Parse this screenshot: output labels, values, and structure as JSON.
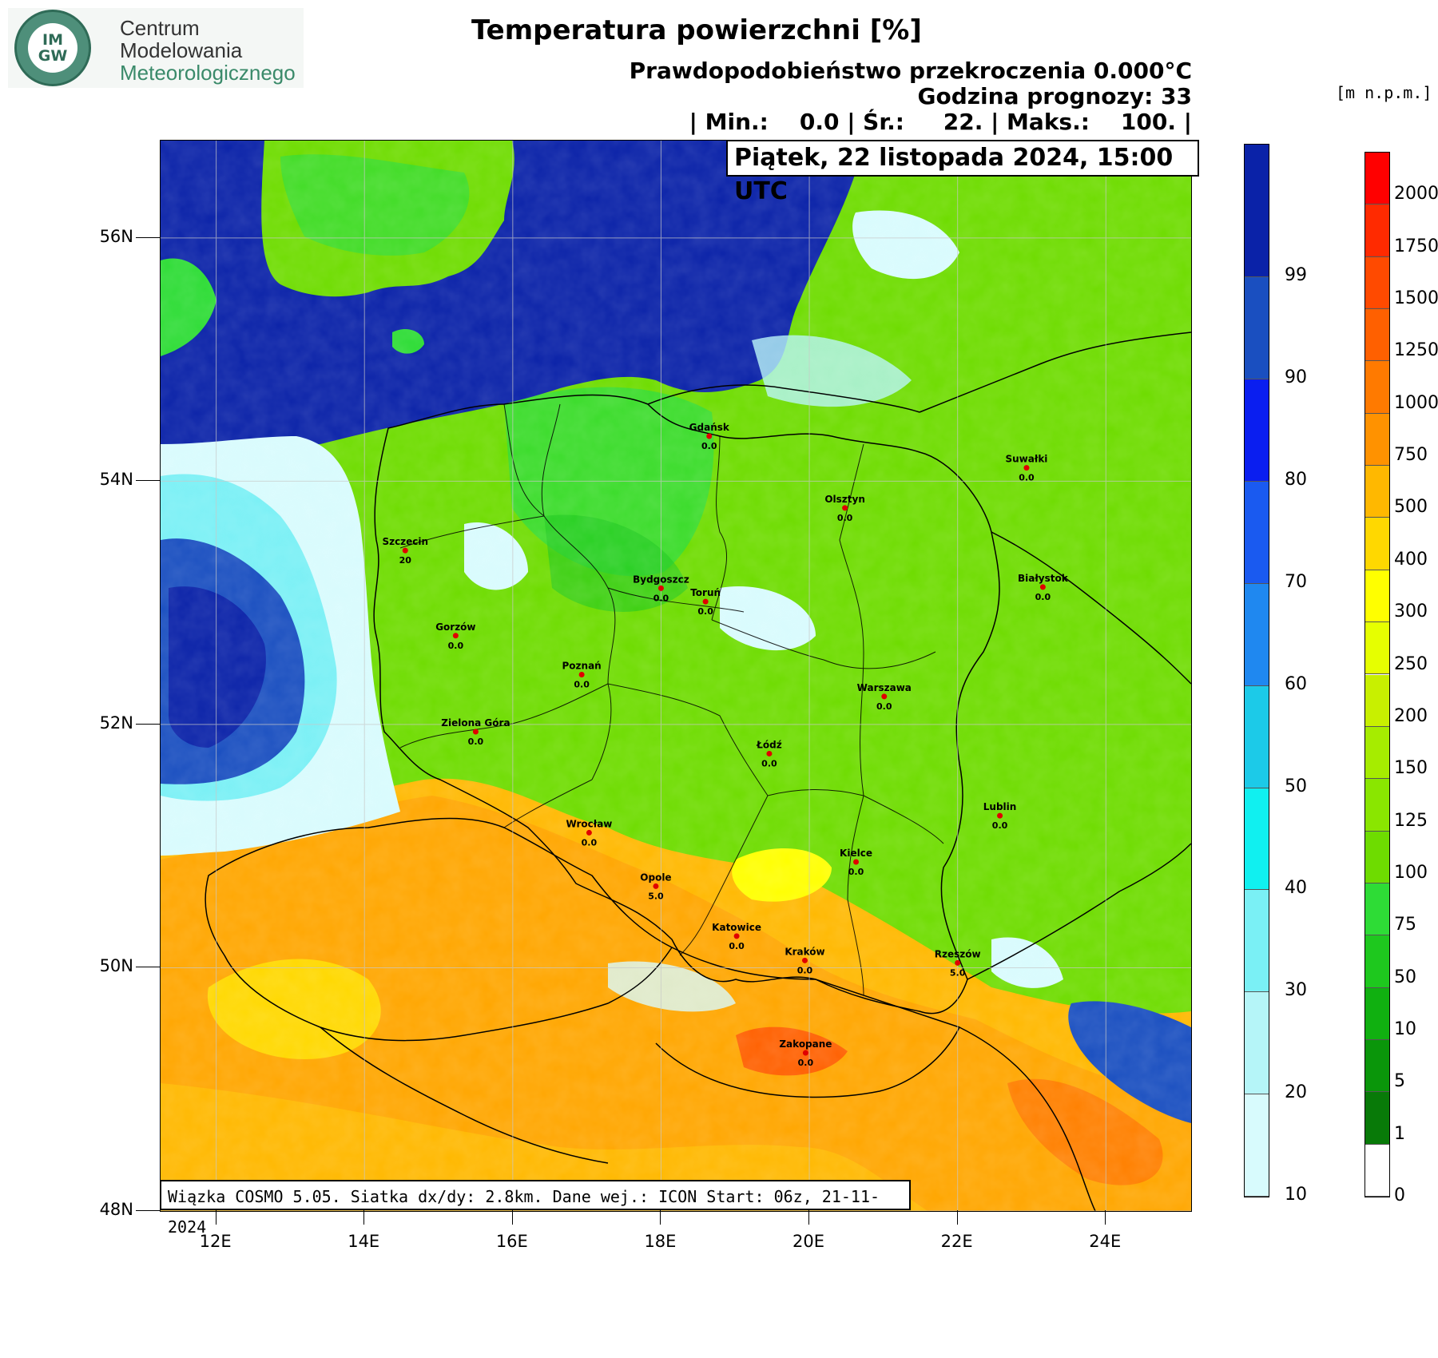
{
  "logo": {
    "badge_line_1": "IM",
    "badge_line_2": "GW",
    "line_1": "Centrum",
    "line_2": "Modelowania",
    "line_3": "Meteorologicznego"
  },
  "header": {
    "title": "Temperatura powierzchni [%]",
    "probability_line_prefix": "Prawdopodobieństwo przekroczenia 0.000",
    "probability_unit": "°C",
    "forecast_hour_line": "Godzina prognozy: 33",
    "stats_line": "| Min.:    0.0 | Śr.:     22. | Maks.:    100. |",
    "date_line": "Piątek, 22 listopada 2024, 15:00 UTC"
  },
  "footnote": "Wiązka COSMO 5.05. Siatka dx/dy: 2.8km. Dane wej.: ICON Start: 06z, 21-11-2024",
  "axes": {
    "lat_labels": [
      "56N",
      "54N",
      "52N",
      "50N",
      "48N"
    ],
    "lat_values": [
      56,
      54,
      52,
      50,
      48
    ],
    "lon_labels": [
      "12E",
      "14E",
      "16E",
      "18E",
      "20E",
      "22E",
      "24E"
    ],
    "lon_values": [
      12,
      14,
      16,
      18,
      20,
      22,
      24
    ],
    "lon_range": [
      11.25,
      25.15
    ],
    "lat_range": [
      48,
      56.8
    ]
  },
  "probability_scale": {
    "ticks": [
      "99",
      "90",
      "80",
      "70",
      "60",
      "50",
      "40",
      "30",
      "20",
      "10"
    ],
    "colors": [
      "#0a22a8",
      "#1a4fc0",
      "#0a1ef0",
      "#1a5af0",
      "#1f88f0",
      "#1ccae8",
      "#10f0f0",
      "#7af0f5",
      "#b5f5f8",
      "#d8fbfd"
    ]
  },
  "elevation_scale": {
    "unit_label": "[m  n.p.m.]",
    "ticks": [
      "2000",
      "1750",
      "1500",
      "1250",
      "1000",
      "750",
      "500",
      "400",
      "300",
      "250",
      "200",
      "150",
      "125",
      "100",
      "75",
      "50",
      "10",
      "5",
      "1",
      "0"
    ],
    "colors": [
      "#ff0000",
      "#ff2a00",
      "#ff4a00",
      "#ff6000",
      "#ff7a00",
      "#ff9200",
      "#ffb800",
      "#ffd800",
      "#ffff00",
      "#e6ff00",
      "#c8f000",
      "#a6ec00",
      "#8ae600",
      "#6edc00",
      "#2edc36",
      "#1ec81e",
      "#10b010",
      "#0a960a",
      "#087a08",
      "#ffffff"
    ]
  },
  "cities": [
    {
      "name": "Gdańsk",
      "value": "0.0",
      "lon": 18.65,
      "lat": 54.37
    },
    {
      "name": "Suwałki",
      "value": "0.0",
      "lon": 22.93,
      "lat": 54.11
    },
    {
      "name": "Olsztyn",
      "value": "0.0",
      "lon": 20.48,
      "lat": 53.78
    },
    {
      "name": "Szczecin",
      "value": "20",
      "lon": 14.55,
      "lat": 53.43
    },
    {
      "name": "Bydgoszcz",
      "value": "0.0",
      "lon": 18.0,
      "lat": 53.12
    },
    {
      "name": "Toruń",
      "value": "0.0",
      "lon": 18.6,
      "lat": 53.01
    },
    {
      "name": "Białystok",
      "value": "0.0",
      "lon": 23.15,
      "lat": 53.13
    },
    {
      "name": "Gorzów",
      "value": "0.0",
      "lon": 15.23,
      "lat": 52.73
    },
    {
      "name": "Poznań",
      "value": "0.0",
      "lon": 16.93,
      "lat": 52.41
    },
    {
      "name": "Warszawa",
      "value": "0.0",
      "lon": 21.01,
      "lat": 52.23
    },
    {
      "name": "Zielona Góra",
      "value": "0.0",
      "lon": 15.5,
      "lat": 51.94
    },
    {
      "name": "Łódź",
      "value": "0.0",
      "lon": 19.46,
      "lat": 51.76
    },
    {
      "name": "Lublin",
      "value": "0.0",
      "lon": 22.57,
      "lat": 51.25
    },
    {
      "name": "Wrocław",
      "value": "0.0",
      "lon": 17.03,
      "lat": 51.11
    },
    {
      "name": "Kielce",
      "value": "0.0",
      "lon": 20.63,
      "lat": 50.87
    },
    {
      "name": "Opole",
      "value": "5.0",
      "lon": 17.93,
      "lat": 50.67
    },
    {
      "name": "Katowice",
      "value": "0.0",
      "lon": 19.02,
      "lat": 50.26
    },
    {
      "name": "Kraków",
      "value": "0.0",
      "lon": 19.94,
      "lat": 50.06
    },
    {
      "name": "Rzeszów",
      "value": "5.0",
      "lon": 22.0,
      "lat": 50.04
    },
    {
      "name": "Zakopane",
      "value": "0.0",
      "lon": 19.95,
      "lat": 49.3
    }
  ]
}
